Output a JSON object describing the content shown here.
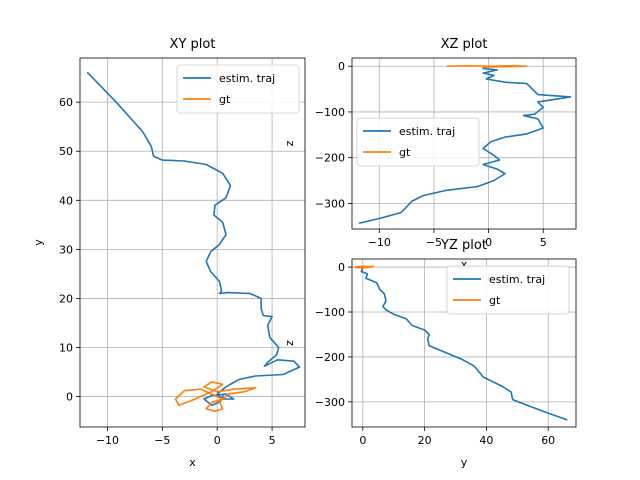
{
  "chart_data": [
    {
      "type": "line",
      "title": "XY plot",
      "xlabel": "x",
      "ylabel": "y",
      "xlim": [
        -12.5,
        8.0
      ],
      "ylim": [
        -6.2,
        69.0
      ],
      "xticks": [
        -10,
        -5,
        0,
        5
      ],
      "yticks": [
        0,
        10,
        20,
        30,
        40,
        50,
        60
      ],
      "grid": true,
      "legend_position": "top-right",
      "series": [
        {
          "name": "estim. traj",
          "color": "#1f77b4",
          "points": [
            [
              -11.8,
              66
            ],
            [
              -10.5,
              63
            ],
            [
              -9.2,
              60
            ],
            [
              -8.0,
              57
            ],
            [
              -6.8,
              54
            ],
            [
              -6.0,
              51
            ],
            [
              -5.8,
              49
            ],
            [
              -5.0,
              48.2
            ],
            [
              -3.0,
              48.0
            ],
            [
              -1.0,
              47.3
            ],
            [
              0.5,
              45.5
            ],
            [
              1.2,
              43
            ],
            [
              0.8,
              40.5
            ],
            [
              -0.2,
              39.0
            ],
            [
              -0.3,
              37.0
            ],
            [
              0.5,
              35.5
            ],
            [
              0.8,
              33.0
            ],
            [
              0.2,
              31.0
            ],
            [
              -0.6,
              29.5
            ],
            [
              -1.0,
              27.5
            ],
            [
              -0.6,
              25.5
            ],
            [
              0.2,
              23.5
            ],
            [
              0.4,
              21.5
            ],
            [
              0.2,
              21.0
            ],
            [
              1.0,
              21.2
            ],
            [
              3.0,
              21.0
            ],
            [
              4.0,
              20.0
            ],
            [
              4.0,
              18.0
            ],
            [
              4.2,
              16.5
            ],
            [
              5.0,
              16.3
            ],
            [
              4.6,
              14.5
            ],
            [
              4.8,
              12.0
            ],
            [
              5.6,
              10.0
            ],
            [
              5.4,
              8.5
            ],
            [
              4.6,
              7.0
            ],
            [
              4.3,
              6.2
            ],
            [
              5.5,
              7.5
            ],
            [
              7.0,
              7.2
            ],
            [
              7.5,
              6.0
            ],
            [
              6.0,
              4.5
            ],
            [
              3.5,
              4.2
            ],
            [
              2.0,
              3.5
            ],
            [
              0.8,
              2.0
            ],
            [
              0.0,
              0.5
            ],
            [
              0.5,
              -0.5
            ],
            [
              1.5,
              -0.5
            ],
            [
              0.8,
              0.5
            ],
            [
              -0.5,
              0.2
            ],
            [
              -1.2,
              -0.5
            ],
            [
              -0.5,
              -1.8
            ],
            [
              0.3,
              -1.0
            ],
            [
              0.6,
              0.5
            ]
          ]
        },
        {
          "name": "gt",
          "color": "#ff7f0e",
          "points": [
            [
              0.0,
              0.0
            ],
            [
              -1.5,
              1.5
            ],
            [
              -3.0,
              1.2
            ],
            [
              -3.8,
              -0.5
            ],
            [
              -3.5,
              -1.8
            ],
            [
              -2.0,
              -0.5
            ],
            [
              -0.5,
              1.0
            ],
            [
              0.5,
              2.5
            ],
            [
              -0.5,
              3.0
            ],
            [
              -1.2,
              2.0
            ],
            [
              0.0,
              1.0
            ],
            [
              1.5,
              1.5
            ],
            [
              3.5,
              1.8
            ],
            [
              2.5,
              1.0
            ],
            [
              1.0,
              0.5
            ],
            [
              0.2,
              -1.0
            ],
            [
              0.5,
              -2.5
            ],
            [
              -0.2,
              -3.0
            ],
            [
              -1.0,
              -2.5
            ],
            [
              -0.5,
              -1.2
            ],
            [
              0.5,
              -0.5
            ],
            [
              0.0,
              0.0
            ]
          ]
        }
      ]
    },
    {
      "type": "line",
      "title": "XZ plot",
      "xlabel": "x",
      "ylabel": "z",
      "xlim": [
        -12.5,
        8.0
      ],
      "ylim": [
        -356,
        18
      ],
      "xticks": [
        -10,
        -5,
        0,
        5
      ],
      "yticks": [
        0,
        -100,
        -200,
        -300
      ],
      "grid": true,
      "legend_position": "center-left",
      "series": [
        {
          "name": "estim. traj",
          "color": "#1f77b4",
          "points": [
            [
              0.0,
              0
            ],
            [
              -0.5,
              -5
            ],
            [
              0.8,
              -8
            ],
            [
              -0.5,
              -15
            ],
            [
              0.5,
              -20
            ],
            [
              -0.2,
              -28
            ],
            [
              1.5,
              -35
            ],
            [
              3.5,
              -38
            ],
            [
              4.0,
              -50
            ],
            [
              4.5,
              -62
            ],
            [
              7.5,
              -67
            ],
            [
              4.5,
              -78
            ],
            [
              5.0,
              -90
            ],
            [
              4.2,
              -105
            ],
            [
              3.2,
              -108
            ],
            [
              4.5,
              -115
            ],
            [
              5.0,
              -135
            ],
            [
              3.5,
              -148
            ],
            [
              1.5,
              -155
            ],
            [
              0.2,
              -165
            ],
            [
              -0.5,
              -180
            ],
            [
              0.5,
              -195
            ],
            [
              1.0,
              -205
            ],
            [
              -0.5,
              -215
            ],
            [
              0.8,
              -225
            ],
            [
              1.5,
              -235
            ],
            [
              0.5,
              -250
            ],
            [
              -1.0,
              -263
            ],
            [
              -4.0,
              -272
            ],
            [
              -6.0,
              -283
            ],
            [
              -7.0,
              -295
            ],
            [
              -8.0,
              -320
            ],
            [
              -10.0,
              -333
            ],
            [
              -11.8,
              -343
            ]
          ]
        },
        {
          "name": "gt",
          "color": "#ff7f0e",
          "points": [
            [
              -3.8,
              0
            ],
            [
              -2.0,
              1
            ],
            [
              0.0,
              0
            ],
            [
              2.0,
              1
            ],
            [
              3.5,
              0
            ],
            [
              1.5,
              -1
            ],
            [
              -0.5,
              -2
            ],
            [
              0.5,
              0
            ]
          ]
        }
      ]
    },
    {
      "type": "line",
      "title": "YZ plot",
      "xlabel": "y",
      "ylabel": "z",
      "xlim": [
        -3.5,
        69.0
      ],
      "ylim": [
        -356,
        18
      ],
      "xticks": [
        0,
        20,
        40,
        60
      ],
      "yticks": [
        0,
        -100,
        -200,
        -300
      ],
      "grid": true,
      "legend_position": "top-right",
      "series": [
        {
          "name": "estim. traj",
          "color": "#1f77b4",
          "points": [
            [
              0.0,
              0
            ],
            [
              -0.5,
              -10
            ],
            [
              1.5,
              -15
            ],
            [
              1.0,
              -25
            ],
            [
              4.5,
              -35
            ],
            [
              5.5,
              -50
            ],
            [
              7.0,
              -60
            ],
            [
              7.5,
              -75
            ],
            [
              6.5,
              -88
            ],
            [
              7.5,
              -95
            ],
            [
              10,
              -105
            ],
            [
              14,
              -115
            ],
            [
              16,
              -130
            ],
            [
              20,
              -140
            ],
            [
              21.5,
              -150
            ],
            [
              21,
              -160
            ],
            [
              21.5,
              -175
            ],
            [
              26,
              -188
            ],
            [
              32,
              -205
            ],
            [
              36,
              -220
            ],
            [
              39,
              -245
            ],
            [
              45,
              -265
            ],
            [
              48,
              -278
            ],
            [
              48.5,
              -295
            ],
            [
              54,
              -310
            ],
            [
              60,
              -325
            ],
            [
              66,
              -340
            ]
          ]
        },
        {
          "name": "gt",
          "color": "#ff7f0e",
          "points": [
            [
              -2.5,
              0
            ],
            [
              0,
              2
            ],
            [
              2.5,
              0
            ],
            [
              0,
              -2
            ],
            [
              -2.5,
              -1
            ],
            [
              3.5,
              1
            ],
            [
              0,
              0
            ]
          ]
        }
      ]
    }
  ]
}
